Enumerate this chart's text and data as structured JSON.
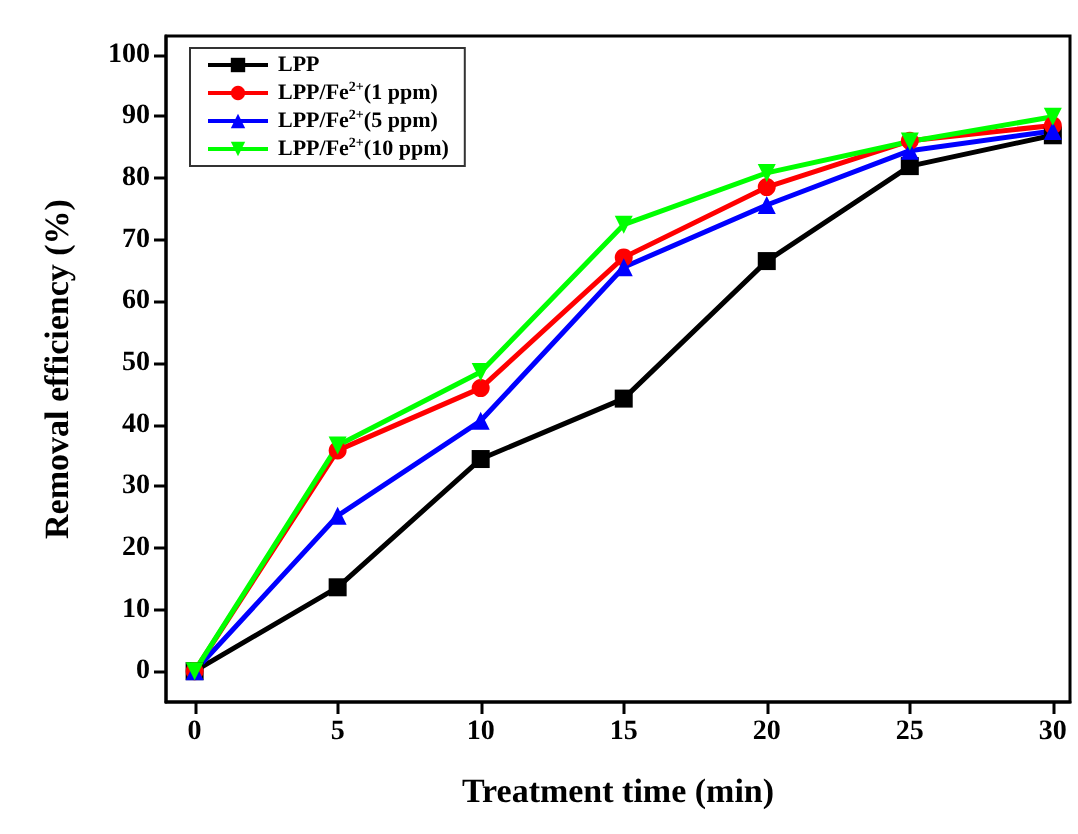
{
  "chart_data": {
    "type": "line",
    "xlabel": "Treatment time (min)",
    "ylabel": "Removal efficiency (%)",
    "x": [
      0,
      5,
      10,
      15,
      20,
      25,
      30
    ],
    "xlim": [
      -1,
      30.6
    ],
    "xticks": [
      0,
      5,
      10,
      15,
      20,
      25,
      30
    ],
    "ylim": [
      -5,
      103
    ],
    "yticks": [
      0,
      10,
      20,
      30,
      40,
      50,
      60,
      70,
      80,
      90,
      100
    ],
    "legend": "top left",
    "line_style": "solid",
    "series": [
      {
        "name": "LPP",
        "color": "#000000",
        "marker": "square",
        "values": [
          0,
          13.6,
          34.4,
          44.2,
          66.5,
          81.9,
          86.9
        ]
      },
      {
        "name": "LPP/Fe$^{2+}$(1 ppm)",
        "color": "#ff0000",
        "marker": "circle",
        "values": [
          0,
          35.8,
          45.9,
          67.1,
          78.5,
          86,
          88.5
        ]
      },
      {
        "name": "LPP/Fe$^{2+}$(5 ppm)",
        "color": "#0000ff",
        "marker": "triangle",
        "values": [
          0,
          25.2,
          40.6,
          65.5,
          75.6,
          84.4,
          87.6
        ]
      },
      {
        "name": "LPP/Fe$^{2+}$(10 ppm)",
        "color": "#00ff00",
        "marker": "triangle-down",
        "values": [
          0,
          36.6,
          48.5,
          72.4,
          80.8,
          85.9,
          89.9
        ]
      }
    ]
  }
}
